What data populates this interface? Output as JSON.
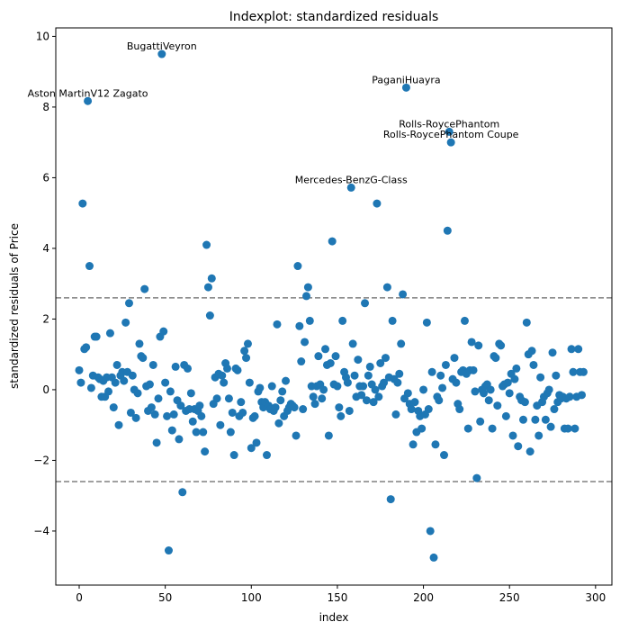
{
  "chart_data": {
    "type": "scatter",
    "title": "Indexplot: standardized residuals",
    "xlabel": "index",
    "ylabel": "standardized residuals of Price",
    "color": "#1f77b4",
    "xlim": [
      -13.6,
      309.5
    ],
    "ylim": [
      -5.53,
      10.24
    ],
    "xticks": [
      0,
      50,
      100,
      150,
      200,
      250,
      300
    ],
    "yticks": [
      {
        "value": -4,
        "label": "−4"
      },
      {
        "value": -2,
        "label": "−2"
      },
      0,
      2,
      4,
      6,
      8,
      10
    ],
    "hlines": [
      2.6,
      -2.6
    ],
    "hline_color": "#808080",
    "x": [
      0,
      1,
      2,
      3,
      4,
      5,
      6,
      7,
      8,
      9,
      10,
      11,
      12,
      13,
      14,
      15,
      16,
      17,
      18,
      19,
      20,
      21,
      22,
      23,
      24,
      25,
      26,
      27,
      28,
      29,
      30,
      31,
      32,
      33,
      34,
      35,
      36,
      37,
      38,
      39,
      40,
      41,
      42,
      43,
      44,
      45,
      46,
      47,
      48,
      49,
      50,
      51,
      52,
      53,
      54,
      55,
      56,
      57,
      58,
      59,
      60,
      61,
      62,
      63,
      64,
      65,
      66,
      67,
      68,
      69,
      70,
      71,
      72,
      73,
      74,
      75,
      76,
      77,
      78,
      79,
      80,
      81,
      82,
      83,
      84,
      85,
      86,
      87,
      88,
      89,
      90,
      91,
      92,
      93,
      94,
      95,
      96,
      97,
      98,
      99,
      100,
      101,
      102,
      103,
      104,
      105,
      106,
      107,
      108,
      109,
      110,
      111,
      112,
      113,
      114,
      115,
      116,
      117,
      118,
      119,
      120,
      121,
      122,
      123,
      124,
      125,
      126,
      127,
      128,
      129,
      130,
      131,
      132,
      133,
      134,
      135,
      136,
      137,
      138,
      139,
      140,
      141,
      142,
      143,
      144,
      145,
      146,
      147,
      148,
      149,
      150,
      151,
      152,
      153,
      154,
      155,
      156,
      157,
      158,
      159,
      160,
      161,
      162,
      163,
      164,
      165,
      166,
      167,
      168,
      169,
      170,
      171,
      172,
      173,
      174,
      175,
      176,
      177,
      178,
      179,
      180,
      181,
      182,
      183,
      184,
      185,
      186,
      187,
      188,
      189,
      190,
      191,
      192,
      193,
      194,
      195,
      196,
      197,
      198,
      199,
      200,
      201,
      202,
      203,
      204,
      205,
      206,
      207,
      208,
      209,
      210,
      211,
      212,
      213,
      214,
      215,
      216,
      217,
      218,
      219,
      220,
      221,
      222,
      223,
      224,
      225,
      226,
      227,
      228,
      229,
      230,
      231,
      232,
      233,
      234,
      235,
      236,
      237,
      238,
      239,
      240,
      241,
      242,
      243,
      244,
      245,
      246,
      247,
      248,
      249,
      250,
      251,
      252,
      253,
      254,
      255,
      256,
      257,
      258,
      259,
      260,
      261,
      262,
      263,
      264,
      265,
      266,
      267,
      268,
      269,
      270,
      271,
      272,
      273,
      274,
      275,
      276,
      277,
      278,
      279,
      280,
      281,
      282,
      283,
      284,
      285,
      286,
      287,
      288,
      289,
      290,
      291,
      292,
      293
    ],
    "values": [
      0.55,
      0.2,
      5.27,
      1.15,
      1.2,
      8.17,
      3.5,
      0.05,
      0.4,
      1.5,
      1.5,
      0.35,
      0.3,
      -0.2,
      0.25,
      -0.2,
      0.35,
      -0.05,
      1.6,
      0.35,
      -0.5,
      0.2,
      0.7,
      -1.0,
      0.4,
      0.5,
      0.25,
      1.9,
      0.5,
      2.45,
      -0.65,
      0.4,
      0.0,
      -0.8,
      -0.1,
      1.3,
      0.95,
      0.9,
      2.85,
      0.1,
      -0.6,
      0.15,
      -0.5,
      0.7,
      -0.7,
      -1.5,
      -0.25,
      1.5,
      9.5,
      1.65,
      0.2,
      -0.75,
      -4.55,
      -0.05,
      -1.15,
      -0.7,
      0.65,
      -0.3,
      -1.4,
      -0.45,
      -2.9,
      0.7,
      -0.6,
      0.6,
      -0.55,
      -0.1,
      -0.9,
      -0.55,
      -1.2,
      -0.6,
      -0.45,
      -0.75,
      -1.2,
      -1.75,
      4.1,
      2.9,
      2.1,
      3.15,
      -0.4,
      0.35,
      -0.25,
      0.45,
      -1.0,
      0.4,
      0.2,
      0.75,
      0.6,
      -0.25,
      -1.2,
      -0.65,
      -1.85,
      0.6,
      0.55,
      -0.75,
      -0.35,
      -0.65,
      1.1,
      0.9,
      1.3,
      0.2,
      -1.65,
      -0.8,
      -0.75,
      -1.5,
      -0.05,
      0.05,
      -0.35,
      -0.5,
      -0.35,
      -1.85,
      -0.45,
      -0.55,
      0.1,
      -0.6,
      -0.5,
      1.85,
      -0.95,
      -0.3,
      -0.05,
      -0.75,
      0.25,
      -0.6,
      -0.5,
      -0.4,
      -0.45,
      -0.5,
      -1.3,
      3.5,
      1.8,
      0.8,
      -0.55,
      1.35,
      2.65,
      2.9,
      1.95,
      0.1,
      -0.2,
      -0.4,
      0.1,
      0.95,
      0.15,
      -0.25,
      0.0,
      1.15,
      0.7,
      -1.3,
      0.75,
      4.2,
      0.15,
      0.95,
      0.1,
      -0.5,
      -0.75,
      1.95,
      0.5,
      0.35,
      0.2,
      -0.6,
      5.72,
      1.3,
      0.4,
      -0.2,
      0.85,
      0.1,
      -0.15,
      0.1,
      2.45,
      -0.3,
      0.4,
      0.65,
      0.15,
      -0.35,
      0.0,
      5.27,
      -0.2,
      0.75,
      0.1,
      0.2,
      0.9,
      2.9,
      0.35,
      -3.1,
      1.95,
      0.3,
      -0.7,
      0.2,
      0.45,
      1.3,
      2.7,
      -0.25,
      8.55,
      -0.1,
      -0.4,
      -0.55,
      -1.55,
      -0.35,
      -1.2,
      -0.6,
      -0.75,
      -1.1,
      0.0,
      -0.7,
      1.9,
      -0.55,
      -4.0,
      0.5,
      -4.75,
      -1.55,
      -0.2,
      -0.3,
      0.4,
      0.05,
      -1.85,
      0.7,
      4.5,
      7.3,
      7.0,
      0.3,
      0.9,
      0.2,
      -0.4,
      -0.55,
      0.5,
      0.55,
      1.95,
      0.45,
      -1.1,
      0.55,
      1.35,
      0.55,
      -0.05,
      -2.5,
      1.25,
      -0.9,
      0.0,
      -0.1,
      0.1,
      0.15,
      -0.3,
      0.0,
      -1.1,
      0.95,
      0.9,
      -0.45,
      1.3,
      1.25,
      0.1,
      0.15,
      -0.75,
      0.2,
      -0.1,
      0.45,
      -1.3,
      0.3,
      0.6,
      -1.6,
      -0.2,
      -0.3,
      -0.85,
      -0.35,
      1.9,
      1.0,
      -1.75,
      1.1,
      0.7,
      -0.85,
      -0.45,
      -1.3,
      0.35,
      -0.35,
      -0.2,
      -0.85,
      -0.1,
      0.0,
      -1.05,
      1.05,
      -0.55,
      0.4,
      -0.35,
      -0.15,
      -0.25,
      -0.2,
      -1.1,
      -0.25,
      -1.1,
      -0.2,
      1.15,
      0.5,
      -1.1,
      -0.2,
      1.15,
      0.5,
      -0.15,
      0.5
    ],
    "annotations": [
      {
        "text": "BugattiVeyron",
        "x": 48,
        "y": 9.5
      },
      {
        "text": "Aston MartinV12 Zagato",
        "x": 5,
        "y": 8.17
      },
      {
        "text": "PaganiHuayra",
        "x": 190,
        "y": 8.55
      },
      {
        "text": "Rolls-RoycePhantom",
        "x": 215,
        "y": 7.3
      },
      {
        "text": "Rolls-RoycePhantom Coupe",
        "x": 216,
        "y": 7.0
      },
      {
        "text": "Mercedes-BenzG-Class",
        "x": 158,
        "y": 5.72
      }
    ]
  }
}
